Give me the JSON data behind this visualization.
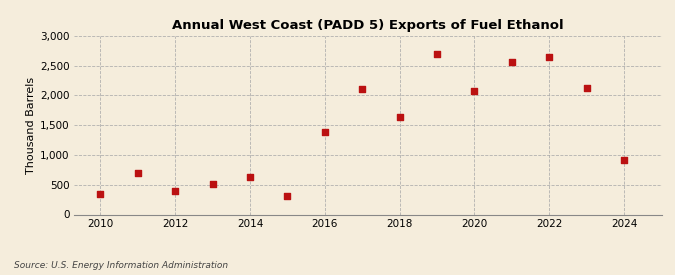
{
  "title": "Annual West Coast (PADD 5) Exports of Fuel Ethanol",
  "ylabel": "Thousand Barrels",
  "source": "Source: U.S. Energy Information Administration",
  "background_color": "#f5eddc",
  "plot_bg_color": "#f5eddc",
  "marker_color": "#bb1111",
  "years": [
    2010,
    2011,
    2012,
    2013,
    2014,
    2015,
    2016,
    2017,
    2018,
    2019,
    2020,
    2021,
    2022,
    2023,
    2024
  ],
  "values": [
    350,
    690,
    390,
    520,
    630,
    310,
    1380,
    2100,
    1640,
    2700,
    2080,
    2560,
    2640,
    2130,
    910
  ],
  "ylim": [
    0,
    3000
  ],
  "yticks": [
    0,
    500,
    1000,
    1500,
    2000,
    2500,
    3000
  ],
  "xticks": [
    2010,
    2012,
    2014,
    2016,
    2018,
    2020,
    2022,
    2024
  ],
  "xlim": [
    2009.3,
    2025.0
  ]
}
